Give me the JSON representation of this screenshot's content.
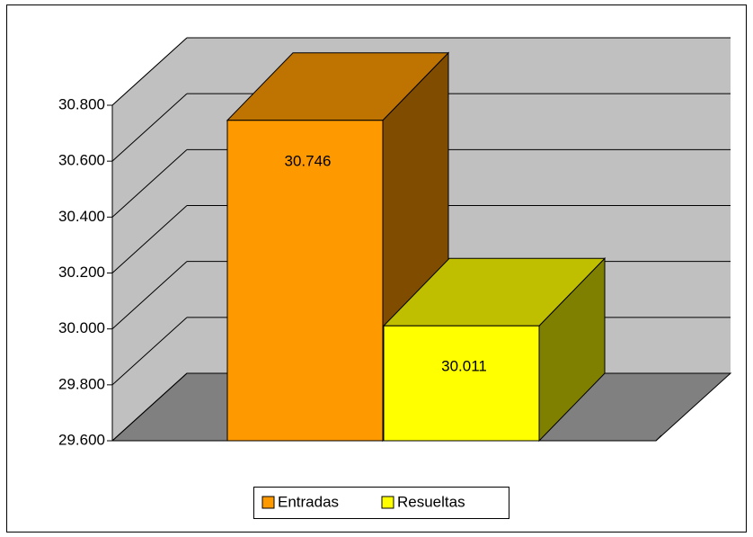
{
  "chart_data": {
    "type": "bar3d",
    "categories": [
      null
    ],
    "series": [
      {
        "name": "Entradas",
        "color": "#ff9900",
        "values": [
          30746
        ],
        "value_labels": [
          "30.746"
        ]
      },
      {
        "name": "Resueltas",
        "color": "#ffff00",
        "values": [
          30011
        ],
        "value_labels": [
          "30.011"
        ]
      }
    ],
    "ylim": [
      29600,
      30800
    ],
    "yticks": [
      {
        "value": 29600,
        "label": "29.600"
      },
      {
        "value": 29800,
        "label": "29.800"
      },
      {
        "value": 30000,
        "label": "30.000"
      },
      {
        "value": 30200,
        "label": "30.200"
      },
      {
        "value": 30400,
        "label": "30.400"
      },
      {
        "value": 30600,
        "label": "30.600"
      },
      {
        "value": 30800,
        "label": "30.800"
      }
    ],
    "grid": true,
    "legend": "bottom"
  }
}
